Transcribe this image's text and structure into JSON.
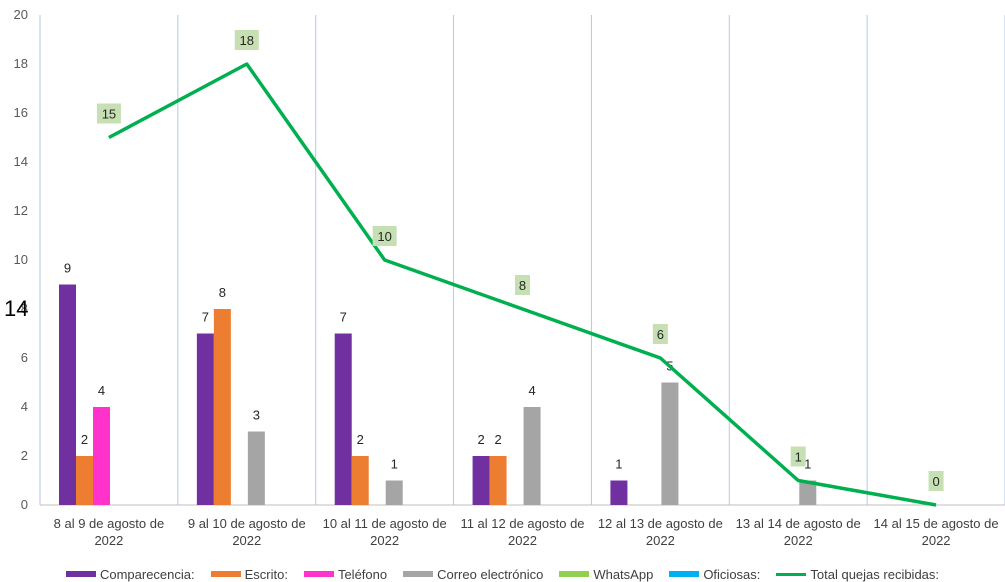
{
  "chart_data": {
    "type": "bar",
    "categories": [
      [
        "8 al 9 de agosto de",
        "2022"
      ],
      [
        "9 al 10 de agosto de",
        "2022"
      ],
      [
        "10 al 11 de agosto de",
        "2022"
      ],
      [
        "11 al 12 de agosto de",
        "2022"
      ],
      [
        "12 al 13 de agosto de",
        "2022"
      ],
      [
        "13 al 14 de agosto de",
        "2022"
      ],
      [
        "14 al 15 de agosto de",
        "2022"
      ]
    ],
    "ylim": [
      0,
      20
    ],
    "yticks": [
      0,
      2,
      4,
      6,
      8,
      10,
      12,
      14,
      16,
      18,
      20
    ],
    "grid": "vertical separators between categories",
    "legend_position": "bottom",
    "series": [
      {
        "name": "Comparecencia:",
        "type": "bar",
        "color": "#7030A0",
        "values": [
          9,
          7,
          7,
          2,
          1,
          0,
          0
        ]
      },
      {
        "name": "Escrito:",
        "type": "bar",
        "color": "#ED7D31",
        "values": [
          2,
          8,
          2,
          2,
          0,
          0,
          0
        ]
      },
      {
        "name": "Teléfono",
        "type": "bar",
        "color": "#FF33CC",
        "values": [
          4,
          0,
          0,
          0,
          0,
          0,
          0
        ]
      },
      {
        "name": "Correo electrónico",
        "type": "bar",
        "color": "#A5A5A5",
        "values": [
          0,
          3,
          1,
          4,
          5,
          1,
          0
        ]
      },
      {
        "name": "WhatsApp",
        "type": "bar",
        "color": "#92D050",
        "values": [
          0,
          0,
          0,
          0,
          0,
          0,
          0
        ]
      },
      {
        "name": "Oficiosas:",
        "type": "bar",
        "color": "#00B0F0",
        "values": [
          0,
          0,
          0,
          0,
          0,
          0,
          0
        ]
      },
      {
        "name": "Total quejas recibidas:",
        "type": "line",
        "color": "#00B050",
        "values": [
          15,
          18,
          10,
          8,
          6,
          1,
          0
        ]
      }
    ]
  },
  "stray_text": "14"
}
